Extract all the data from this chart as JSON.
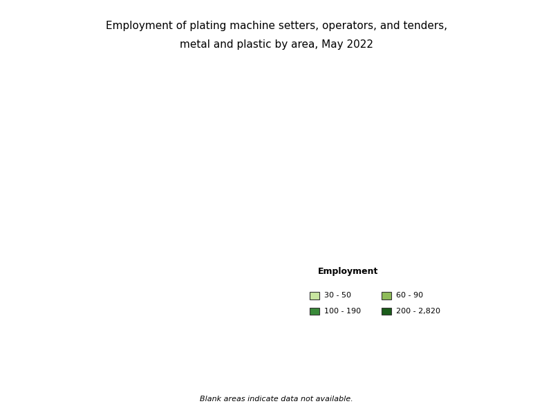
{
  "title_line1": "Employment of plating machine setters, operators, and tenders,",
  "title_line2": "metal and plastic by area, May 2022",
  "title_fontsize": 11,
  "legend_title": "Employment",
  "legend_labels": [
    "30 - 50",
    "60 - 90",
    "100 - 190",
    "200 - 2,820"
  ],
  "legend_colors": [
    "#c8e6a0",
    "#8fbc5a",
    "#3a8a3a",
    "#1a5c1a"
  ],
  "blank_note": "Blank areas indicate data not available.",
  "background_color": "#ffffff",
  "border_color": "#333333",
  "area_fill_none": "#ffffff",
  "map_border_color": "#555555"
}
